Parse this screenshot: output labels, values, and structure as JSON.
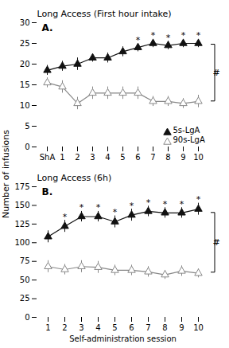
{
  "chart_data": [
    {
      "type": "line",
      "title": "Long Access (First hour intake)",
      "label": "A.",
      "ylabel": "Number of infusions",
      "categories": [
        "ShA",
        "1",
        "2",
        "3",
        "4",
        "5",
        "6",
        "7",
        "8",
        "9",
        "10"
      ],
      "series": [
        {
          "name": "5s-LgA",
          "color": "#111111",
          "marker": "triangle",
          "values": [
            18.5,
            19.5,
            20.0,
            21.5,
            21.5,
            23.0,
            24.0,
            25.0,
            24.5,
            25.0,
            25.0
          ],
          "errors": [
            1.2,
            1.2,
            1.5,
            1.0,
            1.2,
            1.2,
            1.0,
            1.0,
            1.0,
            1.0,
            1.0
          ],
          "annotations": [
            {
              "x": "6",
              "text": "*"
            },
            {
              "x": "7",
              "text": "*"
            },
            {
              "x": "8",
              "text": "*"
            },
            {
              "x": "9",
              "text": "*"
            },
            {
              "x": "10",
              "text": "*"
            }
          ]
        },
        {
          "name": "90s-LgA",
          "color": "#888888",
          "marker": "triangle_open",
          "values": [
            15.5,
            14.5,
            10.5,
            13.0,
            13.0,
            13.0,
            13.0,
            11.0,
            11.0,
            10.5,
            11.0
          ],
          "errors": [
            1.2,
            1.5,
            1.5,
            1.5,
            1.5,
            1.5,
            1.5,
            1.2,
            1.2,
            1.2,
            1.5
          ]
        }
      ],
      "bracket": {
        "from": 11.0,
        "to": 24.7,
        "text": "#"
      },
      "ylim": [
        0,
        30
      ],
      "yticks": [
        0,
        5,
        10,
        15,
        20,
        25,
        30
      ],
      "grid": false,
      "legend": "lower right"
    },
    {
      "type": "line",
      "title": "Long Access (6h)",
      "label": "B.",
      "xlabel": "Self-administration session",
      "categories": [
        "1",
        "2",
        "3",
        "4",
        "5",
        "6",
        "7",
        "8",
        "9",
        "10"
      ],
      "series": [
        {
          "name": "5s-LgA",
          "color": "#111111",
          "marker": "triangle",
          "values": [
            108,
            122,
            135,
            135,
            128,
            137,
            142,
            140,
            140,
            145
          ],
          "errors": [
            8,
            8,
            7,
            7,
            8,
            8,
            7,
            7,
            7,
            8
          ],
          "annotations": [
            {
              "x": "2",
              "text": "*"
            },
            {
              "x": "3",
              "text": "*"
            },
            {
              "x": "4",
              "text": "*"
            },
            {
              "x": "5",
              "text": "*"
            },
            {
              "x": "6",
              "text": "*"
            },
            {
              "x": "7",
              "text": "*"
            },
            {
              "x": "8",
              "text": "*"
            },
            {
              "x": "9",
              "text": "*"
            },
            {
              "x": "10",
              "text": "*"
            }
          ]
        },
        {
          "name": "90s-LgA",
          "color": "#888888",
          "marker": "triangle_open",
          "values": [
            68,
            64,
            68,
            67,
            63,
            63,
            61,
            57,
            62,
            59
          ],
          "errors": [
            8,
            7,
            8,
            8,
            7,
            7,
            7,
            6,
            7,
            6
          ]
        }
      ],
      "bracket": {
        "from": 60,
        "to": 140,
        "text": "#"
      },
      "ylim": [
        0,
        175
      ],
      "yticks": [
        0,
        25,
        50,
        75,
        100,
        125,
        150,
        175
      ],
      "grid": false
    }
  ]
}
